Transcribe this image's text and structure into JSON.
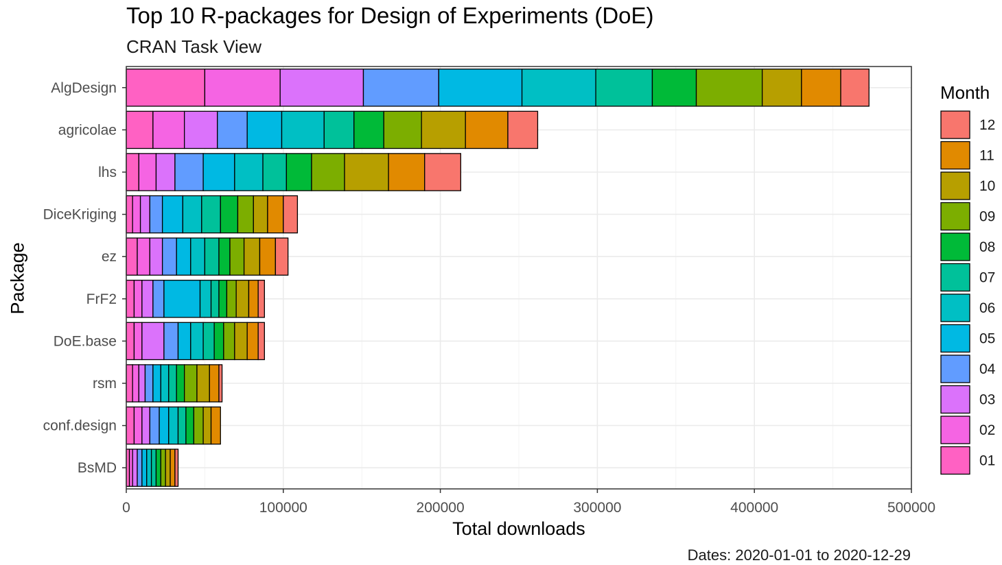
{
  "title": "Top 10 R-packages for Design of Experiments (DoE)",
  "subtitle": "CRAN Task View",
  "caption": "Dates: 2020-01-01 to 2020-12-29",
  "chart_data": {
    "type": "bar",
    "orientation": "horizontal",
    "stacked": true,
    "title": "Top 10 R-packages for Design of Experiments (DoE)",
    "subtitle": "CRAN Task View",
    "xlabel": "Total downloads",
    "ylabel": "Package",
    "xlim": [
      0,
      500000
    ],
    "xticks": [
      0,
      100000,
      200000,
      300000,
      400000,
      500000
    ],
    "xtick_labels": [
      "0",
      "100000",
      "200000",
      "300000",
      "400000",
      "500000"
    ],
    "grid": true,
    "legend": {
      "title": "Month",
      "position": "right"
    },
    "categories": [
      "AlgDesign",
      "agricolae",
      "lhs",
      "DiceKriging",
      "ez",
      "FrF2",
      "DoE.base",
      "rsm",
      "conf.design",
      "BsMD"
    ],
    "series": [
      {
        "name": "01",
        "color": "#FF61C3",
        "values": [
          50000,
          17000,
          8000,
          4000,
          7000,
          5000,
          5000,
          4000,
          5000,
          2000
        ]
      },
      {
        "name": "02",
        "color": "#F564E3",
        "values": [
          48000,
          20000,
          11000,
          5000,
          8000,
          5000,
          5000,
          4000,
          5000,
          2000
        ]
      },
      {
        "name": "03",
        "color": "#DB72FB",
        "values": [
          53000,
          21000,
          12000,
          6000,
          8000,
          7000,
          14000,
          4000,
          5000,
          3000
        ]
      },
      {
        "name": "04",
        "color": "#619CFF",
        "values": [
          48000,
          19000,
          18000,
          8000,
          9000,
          7000,
          9000,
          5000,
          6000,
          3000
        ]
      },
      {
        "name": "05",
        "color": "#00B9E3",
        "values": [
          53000,
          22000,
          20000,
          13000,
          9000,
          23000,
          8000,
          5000,
          6000,
          3000
        ]
      },
      {
        "name": "06",
        "color": "#00BFC4",
        "values": [
          47000,
          27000,
          18000,
          12000,
          9000,
          7000,
          8000,
          5000,
          6000,
          3000
        ]
      },
      {
        "name": "07",
        "color": "#00C19A",
        "values": [
          36000,
          19000,
          15000,
          12000,
          9000,
          5000,
          7000,
          5000,
          5000,
          3000
        ]
      },
      {
        "name": "08",
        "color": "#00BA38",
        "values": [
          28000,
          19000,
          16000,
          11000,
          7000,
          5000,
          6000,
          5000,
          5000,
          3000
        ]
      },
      {
        "name": "09",
        "color": "#7CAE00",
        "values": [
          42000,
          24000,
          21000,
          10000,
          9000,
          6000,
          7000,
          8000,
          6000,
          3000
        ]
      },
      {
        "name": "10",
        "color": "#B79F00",
        "values": [
          25000,
          28000,
          28000,
          9000,
          10000,
          8000,
          8000,
          8000,
          5000,
          3000
        ]
      },
      {
        "name": "11",
        "color": "#E18A00",
        "values": [
          25000,
          27000,
          23000,
          10000,
          10000,
          6000,
          7000,
          6000,
          6000,
          3000
        ]
      },
      {
        "name": "12",
        "color": "#F8766D",
        "values": [
          18000,
          19000,
          23000,
          9000,
          8000,
          4000,
          4000,
          2000,
          0,
          2000
        ]
      }
    ]
  }
}
